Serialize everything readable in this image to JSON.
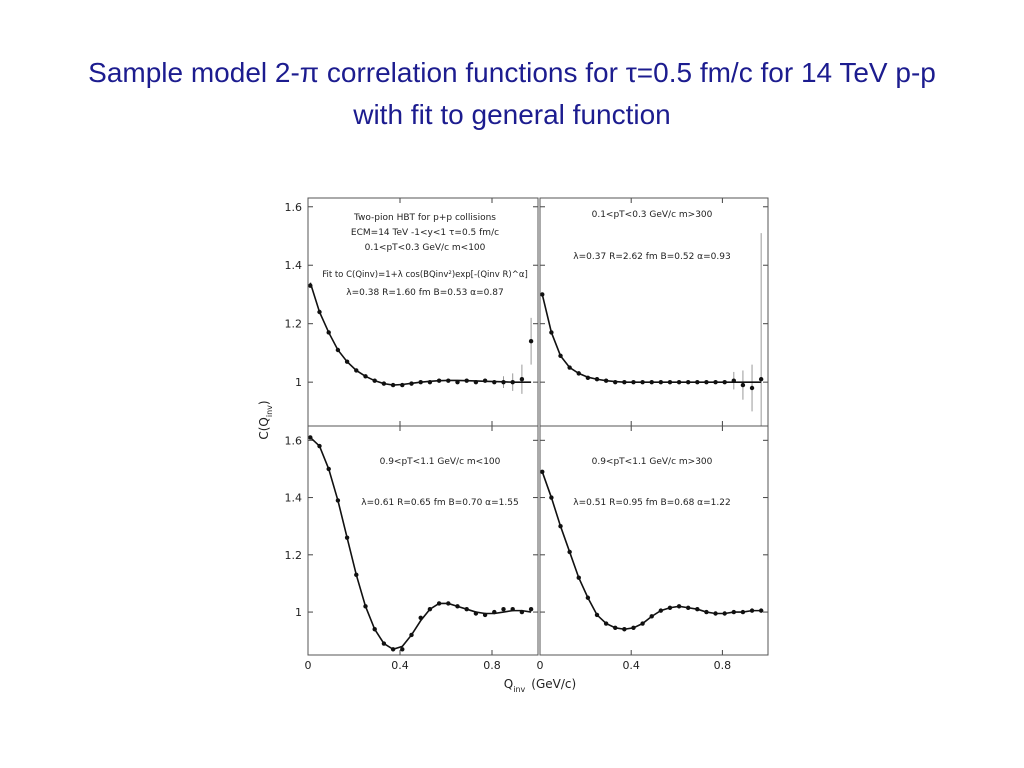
{
  "title": "Sample model 2-π correlation functions for τ=0.5 fm/c for 14 TeV p-p with fit to general function",
  "ylabel": {
    "text": "C(Q",
    "subscript": "inv",
    "tail": ")"
  },
  "xlabel": {
    "text": "Q",
    "subscript": "inv",
    "unit": "(GeV/c)"
  },
  "chart_data": [
    {
      "type": "line",
      "xlim": [
        0,
        1.0
      ],
      "ylim": [
        0.85,
        1.63
      ],
      "yticks": [
        1,
        1.2,
        1.4,
        1.6
      ],
      "annotations": [
        "Two-pion HBT for p+p collisions",
        "ECM=14 TeV   -1<y<1   τ=0.5 fm/c",
        "0.1<pT<0.3 GeV/c   m<100",
        "Fit to  C(Qinv)=1+λ cos(BQinv²)exp[-(Qinv R)^α]",
        "λ=0.38   R=1.60 fm   B=0.53   α=0.87"
      ],
      "x": [
        0.01,
        0.05,
        0.09,
        0.13,
        0.17,
        0.21,
        0.25,
        0.29,
        0.33,
        0.37,
        0.41,
        0.45,
        0.49,
        0.53,
        0.57,
        0.61,
        0.65,
        0.69,
        0.73,
        0.77,
        0.81,
        0.85,
        0.89,
        0.93,
        0.97
      ],
      "series": [
        {
          "mode": "markers",
          "color": "#111111",
          "values": [
            1.33,
            1.24,
            1.17,
            1.11,
            1.07,
            1.04,
            1.02,
            1.005,
            0.995,
            0.99,
            0.99,
            0.995,
            1.0,
            1.0,
            1.005,
            1.005,
            1.0,
            1.005,
            1.0,
            1.005,
            1.0,
            1.0,
            1.0,
            1.01,
            1.14
          ],
          "errors": [
            null,
            null,
            null,
            null,
            null,
            null,
            null,
            null,
            null,
            null,
            null,
            null,
            null,
            null,
            null,
            null,
            null,
            null,
            null,
            null,
            null,
            0.02,
            0.03,
            0.05,
            0.08
          ]
        },
        {
          "mode": "line",
          "color": "#111111",
          "values": [
            1.34,
            1.24,
            1.17,
            1.11,
            1.07,
            1.04,
            1.02,
            1.005,
            0.995,
            0.99,
            0.992,
            0.996,
            1.0,
            1.003,
            1.005,
            1.006,
            1.006,
            1.005,
            1.004,
            1.003,
            1.002,
            1.001,
            1.0,
            1.0,
            1.0
          ]
        }
      ]
    },
    {
      "type": "line",
      "xlim": [
        0,
        1.0
      ],
      "ylim": [
        0.85,
        1.63
      ],
      "annotations": [
        "0.1<pT<0.3 GeV/c   m>300",
        "λ=0.37   R=2.62 fm   B=0.52   α=0.93"
      ],
      "x": [
        0.01,
        0.05,
        0.09,
        0.13,
        0.17,
        0.21,
        0.25,
        0.29,
        0.33,
        0.37,
        0.41,
        0.45,
        0.49,
        0.53,
        0.57,
        0.61,
        0.65,
        0.69,
        0.73,
        0.77,
        0.81,
        0.85,
        0.89,
        0.93,
        0.97
      ],
      "series": [
        {
          "mode": "markers",
          "color": "#111111",
          "values": [
            1.3,
            1.17,
            1.09,
            1.05,
            1.03,
            1.015,
            1.01,
            1.005,
            1.0,
            1.0,
            1.0,
            1.0,
            1.0,
            1.0,
            1.0,
            1.0,
            1.0,
            1.0,
            1.0,
            1.0,
            1.0,
            1.005,
            0.99,
            0.98,
            1.01
          ],
          "errors": [
            null,
            null,
            null,
            null,
            null,
            null,
            null,
            null,
            null,
            null,
            null,
            null,
            null,
            null,
            null,
            null,
            null,
            null,
            null,
            null,
            null,
            0.03,
            0.05,
            0.08,
            0.5
          ]
        },
        {
          "mode": "line",
          "color": "#111111",
          "values": [
            1.3,
            1.17,
            1.09,
            1.05,
            1.03,
            1.017,
            1.01,
            1.005,
            1.002,
            1.0,
            1.0,
            1.0,
            1.0,
            1.0,
            1.0,
            1.0,
            1.0,
            1.0,
            1.0,
            1.0,
            1.0,
            1.0,
            1.0,
            1.0,
            1.0
          ]
        }
      ]
    },
    {
      "type": "line",
      "xlim": [
        0,
        1.0
      ],
      "ylim": [
        0.85,
        1.65
      ],
      "yticks": [
        1,
        1.2,
        1.4,
        1.6
      ],
      "xticks": [
        0,
        0.4,
        0.8
      ],
      "annotations": [
        "0.9<pT<1.1 GeV/c   m<100",
        "λ=0.61   R=0.65 fm   B=0.70   α=1.55"
      ],
      "x": [
        0.01,
        0.05,
        0.09,
        0.13,
        0.17,
        0.21,
        0.25,
        0.29,
        0.33,
        0.37,
        0.41,
        0.45,
        0.49,
        0.53,
        0.57,
        0.61,
        0.65,
        0.69,
        0.73,
        0.77,
        0.81,
        0.85,
        0.89,
        0.93,
        0.97
      ],
      "series": [
        {
          "mode": "markers",
          "color": "#111111",
          "values": [
            1.61,
            1.58,
            1.5,
            1.39,
            1.26,
            1.13,
            1.02,
            0.94,
            0.89,
            0.87,
            0.87,
            0.92,
            0.98,
            1.01,
            1.03,
            1.03,
            1.02,
            1.01,
            0.995,
            0.99,
            1.0,
            1.01,
            1.01,
            1.0,
            1.01
          ]
        },
        {
          "mode": "line",
          "color": "#111111",
          "values": [
            1.61,
            1.58,
            1.5,
            1.39,
            1.26,
            1.13,
            1.02,
            0.94,
            0.89,
            0.87,
            0.88,
            0.92,
            0.97,
            1.01,
            1.03,
            1.03,
            1.02,
            1.01,
            1.0,
            0.995,
            0.995,
            1.0,
            1.005,
            1.005,
            1.0
          ]
        }
      ]
    },
    {
      "type": "line",
      "xlim": [
        0,
        1.0
      ],
      "ylim": [
        0.85,
        1.65
      ],
      "xticks": [
        0,
        0.4,
        0.8
      ],
      "annotations": [
        "0.9<pT<1.1 GeV/c   m>300",
        "λ=0.51   R=0.95 fm   B=0.68   α=1.22"
      ],
      "x": [
        0.01,
        0.05,
        0.09,
        0.13,
        0.17,
        0.21,
        0.25,
        0.29,
        0.33,
        0.37,
        0.41,
        0.45,
        0.49,
        0.53,
        0.57,
        0.61,
        0.65,
        0.69,
        0.73,
        0.77,
        0.81,
        0.85,
        0.89,
        0.93,
        0.97
      ],
      "series": [
        {
          "mode": "markers",
          "color": "#111111",
          "values": [
            1.49,
            1.4,
            1.3,
            1.21,
            1.12,
            1.05,
            0.99,
            0.96,
            0.945,
            0.94,
            0.945,
            0.96,
            0.985,
            1.005,
            1.015,
            1.02,
            1.015,
            1.01,
            1.0,
            0.995,
            0.995,
            1.0,
            1.0,
            1.005,
            1.005
          ]
        },
        {
          "mode": "line",
          "color": "#111111",
          "values": [
            1.49,
            1.4,
            1.3,
            1.21,
            1.12,
            1.05,
            0.99,
            0.96,
            0.945,
            0.94,
            0.945,
            0.96,
            0.985,
            1.005,
            1.015,
            1.02,
            1.015,
            1.01,
            1.0,
            0.995,
            0.995,
            1.0,
            1.0,
            1.005,
            1.005
          ]
        }
      ]
    }
  ]
}
